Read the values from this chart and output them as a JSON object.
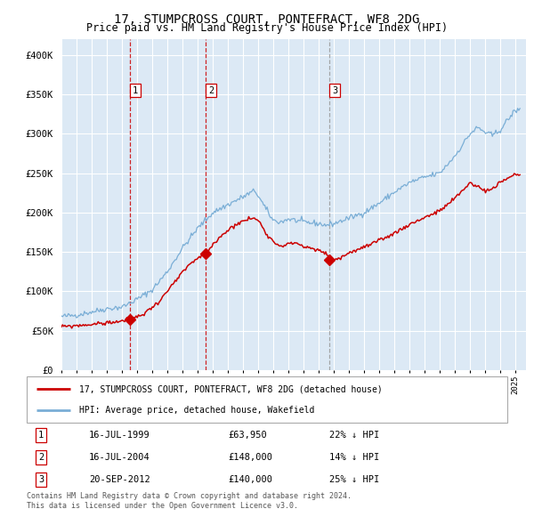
{
  "title": "17, STUMPCROSS COURT, PONTEFRACT, WF8 2DG",
  "subtitle": "Price paid vs. HM Land Registry's House Price Index (HPI)",
  "title_fontsize": 10,
  "subtitle_fontsize": 8.5,
  "background_color": "#ffffff",
  "plot_bg_color": "#dce9f5",
  "grid_color": "#ffffff",
  "hpi_color": "#7aaed6",
  "price_color": "#cc0000",
  "sales": [
    {
      "index": 1,
      "date_num": 1999.54,
      "price": 63950,
      "label": "1",
      "vline_color": "#cc0000"
    },
    {
      "index": 2,
      "date_num": 2004.54,
      "price": 148000,
      "label": "2",
      "vline_color": "#cc0000"
    },
    {
      "index": 3,
      "date_num": 2012.72,
      "price": 140000,
      "label": "3",
      "vline_color": "#999999"
    }
  ],
  "legend_entries": [
    {
      "label": "17, STUMPCROSS COURT, PONTEFRACT, WF8 2DG (detached house)",
      "color": "#cc0000"
    },
    {
      "label": "HPI: Average price, detached house, Wakefield",
      "color": "#7aaed6"
    }
  ],
  "table_rows": [
    {
      "num": "1",
      "date": "16-JUL-1999",
      "price": "£63,950",
      "hpi": "22% ↓ HPI"
    },
    {
      "num": "2",
      "date": "16-JUL-2004",
      "price": "£148,000",
      "hpi": "14% ↓ HPI"
    },
    {
      "num": "3",
      "date": "20-SEP-2012",
      "price": "£140,000",
      "hpi": "25% ↓ HPI"
    }
  ],
  "footnote": "Contains HM Land Registry data © Crown copyright and database right 2024.\nThis data is licensed under the Open Government Licence v3.0.",
  "ylim": [
    0,
    420000
  ],
  "xlim_start": 1995.0,
  "xlim_end": 2025.7,
  "yticks": [
    0,
    50000,
    100000,
    150000,
    200000,
    250000,
    300000,
    350000,
    400000
  ],
  "ytick_labels": [
    "£0",
    "£50K",
    "£100K",
    "£150K",
    "£200K",
    "£250K",
    "£300K",
    "£350K",
    "£400K"
  ]
}
